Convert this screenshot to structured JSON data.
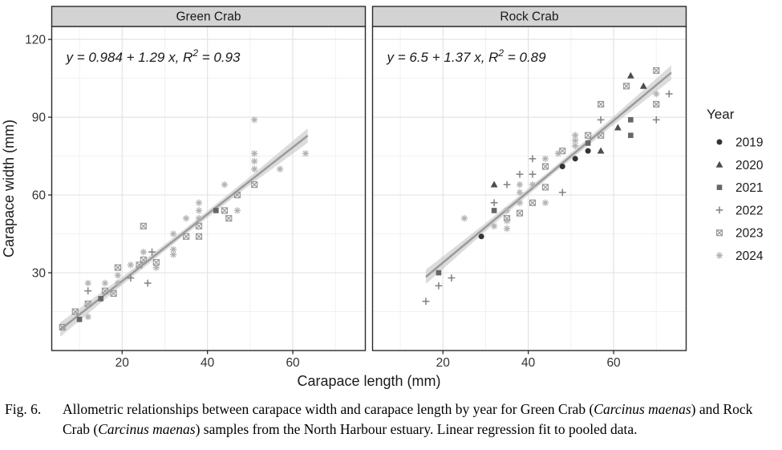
{
  "figure": {
    "caption": {
      "label": "Fig. 6.",
      "segments": [
        {
          "text": "Allometric relationships between carapace width and carapace length by year for Green Crab (",
          "italic": false
        },
        {
          "text": "Carcinus maenas",
          "italic": true
        },
        {
          "text": ") and Rock Crab (",
          "italic": false
        },
        {
          "text": "Carcinus maenas",
          "italic": true
        },
        {
          "text": ") samples from the North Harbour estuary. Linear regression fit to pooled data.",
          "italic": false
        }
      ]
    }
  },
  "chart_data": {
    "type": "scatter",
    "xlabel": "Carapace length (mm)",
    "ylabel": "Carapace width (mm)",
    "xlim": [
      3.5,
      77
    ],
    "ylim": [
      0,
      125
    ],
    "x_ticks": [
      20,
      40,
      60
    ],
    "y_ticks": [
      30,
      60,
      90,
      120
    ],
    "x_minor_ticks": [
      10,
      30,
      50,
      70
    ],
    "y_minor_ticks": [
      15,
      45,
      75,
      105
    ],
    "grid": true,
    "legend": {
      "title": "Year",
      "position": "right",
      "entries": [
        {
          "label": "2019",
          "shape": "circle",
          "color": "#333333"
        },
        {
          "label": "2020",
          "shape": "triangle",
          "color": "#4d4d4d"
        },
        {
          "label": "2021",
          "shape": "square",
          "color": "#666666"
        },
        {
          "label": "2022",
          "shape": "plus",
          "color": "#808080"
        },
        {
          "label": "2023",
          "shape": "box-x",
          "color": "#999999"
        },
        {
          "label": "2024",
          "shape": "asterisk",
          "color": "#b3b3b3"
        }
      ]
    },
    "style": {
      "fit_line_color": "#9b9b9b",
      "ci_ribbon_color": "#c4c4c4",
      "strip_fill": "#d3d3d3",
      "panel_border": "#2a2a2a",
      "grid_major": "#e3e3e3",
      "grid_minor": "#f1f1f1"
    },
    "facets": [
      {
        "title": "Green Crab",
        "equation": {
          "before_sup": "y = 0.984 + 1.29 x, R",
          "sup": "2",
          "after_sup": " = 0.93"
        },
        "fit": {
          "intercept": 0.984,
          "slope": 1.29,
          "r2": 0.93,
          "x_range": [
            5.5,
            63.5
          ]
        },
        "series": [
          {
            "year": "2021",
            "points": [
              [
                10,
                12
              ],
              [
                15,
                20
              ],
              [
                42,
                54
              ]
            ]
          },
          {
            "year": "2022",
            "points": [
              [
                12,
                23
              ],
              [
                22,
                28
              ],
              [
                26,
                26
              ],
              [
                27,
                38
              ]
            ]
          },
          {
            "year": "2023",
            "points": [
              [
                6,
                9
              ],
              [
                9,
                15
              ],
              [
                12,
                18
              ],
              [
                16,
                23
              ],
              [
                18,
                22
              ],
              [
                19,
                32
              ],
              [
                24,
                33
              ],
              [
                25,
                35
              ],
              [
                25,
                48
              ],
              [
                28,
                34
              ],
              [
                35,
                44
              ],
              [
                38,
                44
              ],
              [
                38,
                48
              ],
              [
                44,
                54
              ],
              [
                45,
                51
              ],
              [
                47,
                60
              ],
              [
                51,
                64
              ]
            ]
          },
          {
            "year": "2024",
            "points": [
              [
                12,
                13
              ],
              [
                12,
                26
              ],
              [
                16,
                26
              ],
              [
                19,
                26
              ],
              [
                19,
                29
              ],
              [
                22,
                33
              ],
              [
                25,
                38
              ],
              [
                28,
                32
              ],
              [
                32,
                37
              ],
              [
                32,
                39
              ],
              [
                32,
                45
              ],
              [
                35,
                51
              ],
              [
                38,
                51
              ],
              [
                38,
                54
              ],
              [
                38,
                57
              ],
              [
                44,
                64
              ],
              [
                47,
                54
              ],
              [
                51,
                70
              ],
              [
                51,
                73
              ],
              [
                51,
                76
              ],
              [
                51,
                89
              ],
              [
                57,
                70
              ],
              [
                63,
                76
              ]
            ]
          }
        ]
      },
      {
        "title": "Rock Crab",
        "equation": {
          "before_sup": "y = 6.5 + 1.37 x, R",
          "sup": "2",
          "after_sup": " = 0.89"
        },
        "fit": {
          "intercept": 6.5,
          "slope": 1.37,
          "r2": 0.89,
          "x_range": [
            16,
            73.5
          ]
        },
        "series": [
          {
            "year": "2019",
            "points": [
              [
                29,
                44
              ],
              [
                48,
                71
              ],
              [
                51,
                74
              ],
              [
                54,
                77
              ]
            ]
          },
          {
            "year": "2020",
            "points": [
              [
                32,
                64
              ],
              [
                57,
                77
              ],
              [
                61,
                86
              ],
              [
                64,
                106
              ],
              [
                67,
                102
              ]
            ]
          },
          {
            "year": "2021",
            "points": [
              [
                19,
                30
              ],
              [
                32,
                54
              ],
              [
                54,
                80
              ],
              [
                64,
                83
              ],
              [
                64,
                89
              ]
            ]
          },
          {
            "year": "2022",
            "points": [
              [
                16,
                19
              ],
              [
                19,
                25
              ],
              [
                22,
                28
              ],
              [
                32,
                57
              ],
              [
                35,
                64
              ],
              [
                38,
                68
              ],
              [
                41,
                68
              ],
              [
                41,
                74
              ],
              [
                48,
                61
              ],
              [
                57,
                89
              ],
              [
                70,
                89
              ],
              [
                73,
                99
              ]
            ]
          },
          {
            "year": "2023",
            "points": [
              [
                35,
                51
              ],
              [
                38,
                53
              ],
              [
                41,
                57
              ],
              [
                44,
                63
              ],
              [
                44,
                71
              ],
              [
                48,
                77
              ],
              [
                54,
                83
              ],
              [
                57,
                83
              ],
              [
                57,
                95
              ],
              [
                63,
                102
              ],
              [
                70,
                95
              ],
              [
                70,
                108
              ]
            ]
          },
          {
            "year": "2024",
            "points": [
              [
                25,
                51
              ],
              [
                32,
                48
              ],
              [
                35,
                47
              ],
              [
                35,
                50
              ],
              [
                35,
                54
              ],
              [
                38,
                57
              ],
              [
                38,
                61
              ],
              [
                38,
                64
              ],
              [
                41,
                64
              ],
              [
                44,
                57
              ],
              [
                44,
                74
              ],
              [
                47,
                76
              ],
              [
                51,
                79
              ],
              [
                51,
                81
              ],
              [
                51,
                83
              ],
              [
                70,
                99
              ]
            ]
          }
        ]
      }
    ]
  }
}
